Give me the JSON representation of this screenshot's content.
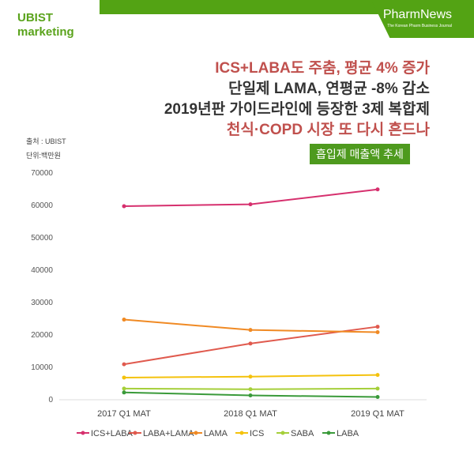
{
  "brand": {
    "line1": "UBIST",
    "line2": "marketing"
  },
  "publisher": {
    "name": "PharmNews",
    "tagline": "The Korean Pharm Business Journal"
  },
  "headline": [
    "ICS+LABA도 주춤, 평균 4% 증가",
    "단일제 LAMA, 연평균 -8% 감소",
    "2019년판 가이드라인에 등장한 3제 복합제",
    "천식·COPD 시장 또 다시 흔드나"
  ],
  "source": "출처 : UBIST",
  "unit": "단위:백만원",
  "chart_title": "흡입제 매출액 추세",
  "chart_data": {
    "type": "line",
    "title": "흡입제 매출액 추세",
    "categories": [
      "2017 Q1 MAT",
      "2018 Q1 MAT",
      "2019 Q1 MAT"
    ],
    "ylim": [
      0,
      70000
    ],
    "yticks": [
      0,
      10000,
      20000,
      30000,
      40000,
      50000,
      60000,
      70000
    ],
    "legend_position": "bottom",
    "series": [
      {
        "name": "ICS+LABA",
        "color": "#d6306e",
        "values": [
          59500,
          60100,
          64700
        ]
      },
      {
        "name": "LABA+LAMA",
        "color": "#e05a4e",
        "values": [
          10700,
          17100,
          22300
        ]
      },
      {
        "name": "LAMA",
        "color": "#f08a24",
        "values": [
          24500,
          21300,
          20600
        ]
      },
      {
        "name": "ICS",
        "color": "#f4c20d",
        "values": [
          6600,
          6900,
          7400
        ]
      },
      {
        "name": "SABA",
        "color": "#a5cf3a",
        "values": [
          3200,
          3000,
          3200
        ]
      },
      {
        "name": "LABA",
        "color": "#3a9a3a",
        "values": [
          2000,
          1100,
          600
        ]
      }
    ]
  }
}
